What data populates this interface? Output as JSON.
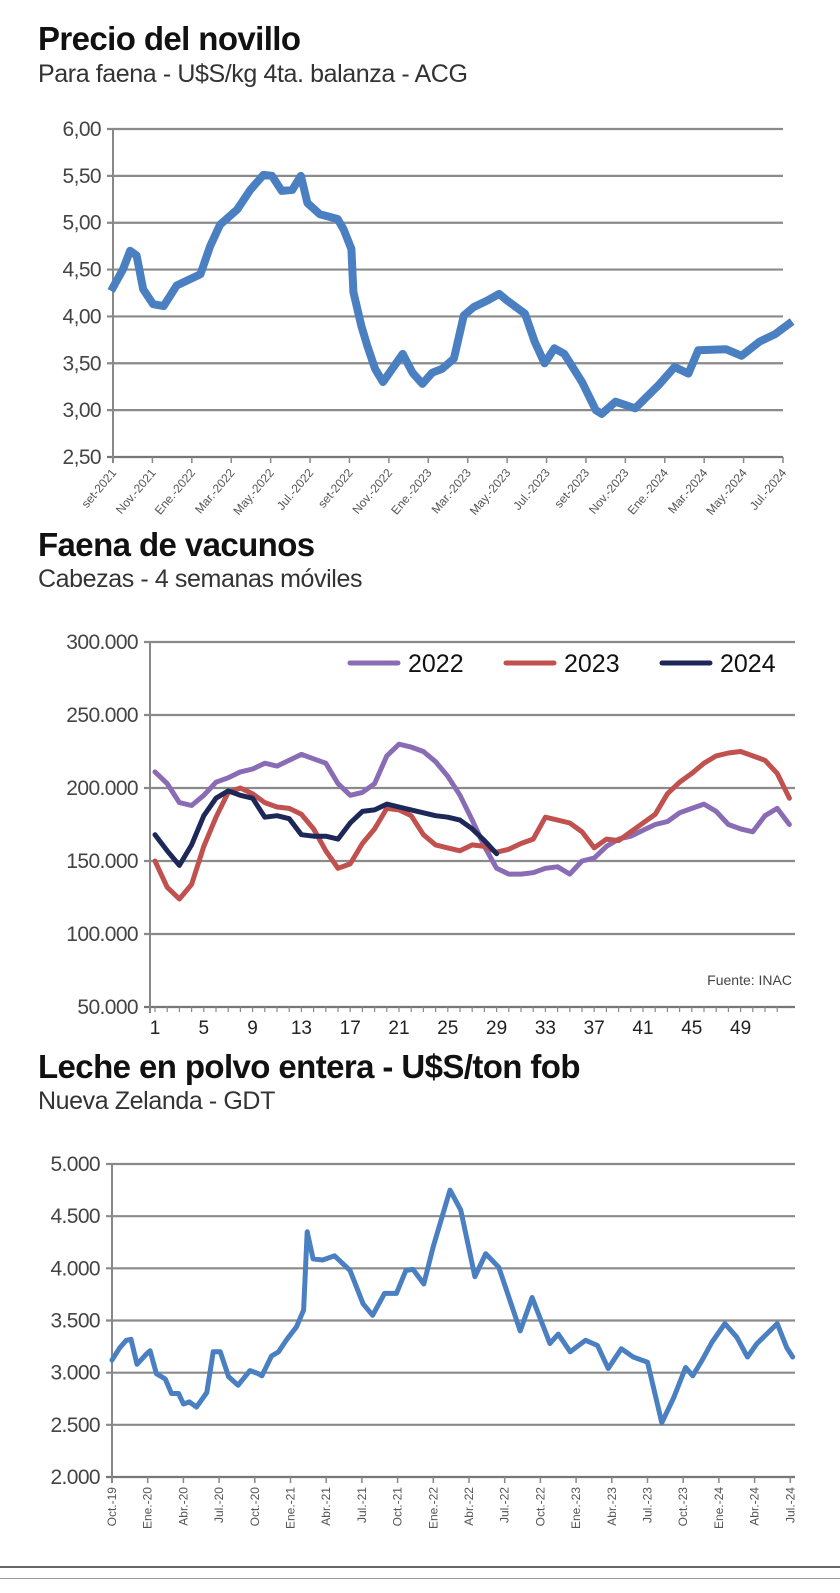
{
  "chart_data": [
    {
      "type": "line",
      "title": "Precio del novillo",
      "subtitle": "Para faena - U$S/kg 4ta. balanza - ACG",
      "ylim": [
        2.5,
        6.0
      ],
      "y_ticks": [
        "2,50",
        "3,00",
        "3,50",
        "4,00",
        "4,50",
        "5,00",
        "5,50",
        "6,00"
      ],
      "x_tick_labels": [
        "set-2021",
        "Nov.-2021",
        "Ene.-2022",
        "Mar.-2022",
        "May.-2022",
        "Jul.-2022",
        "set-2022",
        "Nov.-2022",
        "Ene.-2023",
        "Mar.-2023",
        "May.-2023",
        "Jul.-2023",
        "set-2023",
        "Nov.-2023",
        "Ene.-2024",
        "Mar.-2024",
        "May.-2024",
        "Jul.-2024"
      ],
      "grid": true,
      "color": "#4a7fc1",
      "series": [
        {
          "x": [
            "2021-09-01",
            "2021-09-16",
            "2021-09-27",
            "2021-10-07",
            "2021-10-17",
            "2021-11-02",
            "2021-11-18",
            "2021-12-08",
            "2022-01-14",
            "2022-01-29",
            "2022-02-14",
            "2022-03-10",
            "2022-03-30",
            "2022-04-20",
            "2022-05-03",
            "2022-05-18",
            "2022-06-04",
            "2022-06-17",
            "2022-06-27",
            "2022-07-16",
            "2022-08-13",
            "2022-08-22",
            "2022-09-04",
            "2022-09-07",
            "2022-09-19",
            "2022-09-28",
            "2022-10-10",
            "2022-10-22",
            "2022-11-10",
            "2022-11-22",
            "2022-12-07",
            "2022-12-22",
            "2023-01-07",
            "2023-01-22",
            "2023-02-10",
            "2023-02-25",
            "2023-03-10",
            "2023-04-01",
            "2023-04-19",
            "2023-05-01",
            "2023-05-28",
            "2023-06-13",
            "2023-06-28",
            "2023-07-13",
            "2023-07-28",
            "2023-08-25",
            "2023-09-16",
            "2023-09-25",
            "2023-10-16",
            "2023-11-16",
            "2023-12-22",
            "2024-01-16",
            "2024-02-07",
            "2024-02-22",
            "2024-04-04",
            "2024-04-28",
            "2024-05-25",
            "2024-06-19",
            "2024-07-10"
          ],
          "y": [
            4.31,
            4.5,
            4.7,
            4.65,
            4.29,
            4.13,
            4.11,
            4.33,
            4.45,
            4.75,
            4.98,
            5.14,
            5.35,
            5.51,
            5.5,
            5.34,
            5.35,
            5.5,
            5.21,
            5.09,
            5.04,
            4.93,
            4.72,
            4.26,
            3.9,
            3.69,
            3.44,
            3.3,
            3.48,
            3.6,
            3.4,
            3.28,
            3.4,
            3.44,
            3.55,
            4.01,
            4.1,
            4.17,
            4.24,
            4.17,
            4.03,
            3.73,
            3.5,
            3.66,
            3.6,
            3.3,
            3.0,
            2.96,
            3.09,
            3.02,
            3.27,
            3.46,
            3.39,
            3.64,
            3.65,
            3.58,
            3.73,
            3.81,
            3.92
          ]
        }
      ]
    },
    {
      "type": "line",
      "title": "Faena de vacunos",
      "subtitle": "Cabezas - 4 semanas móviles",
      "ylim": [
        50000,
        300000
      ],
      "y_ticks": [
        "50.000",
        "100.000",
        "150.000",
        "200.000",
        "250.000",
        "300.000"
      ],
      "x_tick_labels": [
        "1",
        "5",
        "9",
        "13",
        "17",
        "21",
        "25",
        "29",
        "33",
        "37",
        "41",
        "45",
        "49"
      ],
      "grid": true,
      "legend": "top-right",
      "source": "Fuente: INAC",
      "series": [
        {
          "name": "2022",
          "color": "#8a6cb5",
          "values": [
            211000,
            203000,
            190000,
            188000,
            195000,
            204000,
            207000,
            211000,
            213000,
            217000,
            215000,
            219000,
            223000,
            220000,
            217000,
            203000,
            195000,
            197000,
            203000,
            222000,
            230000,
            228000,
            225000,
            218000,
            208000,
            195000,
            178000,
            160000,
            145000,
            141000,
            141000,
            142000,
            145000,
            146000,
            141000,
            150000,
            152000,
            160000,
            165000,
            167000,
            171000,
            175000,
            177000,
            183000,
            186000,
            189000,
            184000,
            175000,
            172000,
            170000,
            181000,
            186000,
            175000
          ]
        },
        {
          "name": "2023",
          "color": "#c0514e",
          "values": [
            150000,
            132000,
            124000,
            134000,
            160000,
            180000,
            197000,
            200000,
            196000,
            190000,
            187000,
            186000,
            182000,
            172000,
            157000,
            145000,
            148000,
            162000,
            172000,
            186000,
            185000,
            181000,
            168000,
            161000,
            159000,
            157000,
            161000,
            160000,
            156000,
            158000,
            162000,
            165000,
            180000,
            178000,
            176000,
            170000,
            159000,
            165000,
            164000,
            170000,
            176000,
            182000,
            196000,
            204000,
            210000,
            217000,
            222000,
            224000,
            225000,
            222000,
            219000,
            210000,
            193000
          ]
        },
        {
          "name": "2024",
          "color": "#1e2858",
          "values": [
            168000,
            157000,
            147000,
            161000,
            181000,
            193000,
            198000,
            195000,
            193000,
            180000,
            181000,
            179000,
            168000,
            167000,
            167000,
            165000,
            176000,
            184000,
            185000,
            189000,
            187000,
            185000,
            183000,
            181000,
            180000,
            178000,
            172000,
            164000,
            155000
          ]
        }
      ]
    },
    {
      "type": "line",
      "title": "Leche en polvo entera - U$S/ton fob",
      "subtitle": "Nueva Zelanda - GDT",
      "ylim": [
        2000,
        5000
      ],
      "y_ticks": [
        "2.000",
        "2.500",
        "3.000",
        "3.500",
        "4.000",
        "4.500",
        "5.000"
      ],
      "x_tick_labels": [
        "Oct.-19",
        "Ene.-20",
        "Abr.-20",
        "Jul.-20",
        "Oct.-20",
        "Ene.-21",
        "Abr.-21",
        "Jul.-21",
        "Oct.-21",
        "Ene.-22",
        "Abr.-22",
        "Jul.-22",
        "Oct.-22",
        "Ene.-23",
        "Abr.-23",
        "Jul.-23",
        "Oct.-23",
        "Ene.-24",
        "Abr.-24",
        "Jul.-24"
      ],
      "grid": true,
      "color": "#4a7fc1",
      "series": [
        {
          "x": [
            "2019-10-01",
            "2019-10-21",
            "2019-11-07",
            "2019-11-19",
            "2019-12-04",
            "2019-12-28",
            "2020-01-07",
            "2020-01-23",
            "2020-02-15",
            "2020-03-01",
            "2020-03-19",
            "2020-04-01",
            "2020-04-16",
            "2020-05-04",
            "2020-05-30",
            "2020-06-16",
            "2020-07-04",
            "2020-07-25",
            "2020-08-19",
            "2020-09-19",
            "2020-10-10",
            "2020-10-19",
            "2020-11-13",
            "2020-12-01",
            "2020-12-22",
            "2021-01-16",
            "2021-02-04",
            "2021-02-13",
            "2021-02-28",
            "2021-03-22",
            "2021-04-22",
            "2021-06-01",
            "2021-07-04",
            "2021-07-28",
            "2021-08-28",
            "2021-09-28",
            "2021-10-22",
            "2021-11-10",
            "2021-12-07",
            "2022-01-01",
            "2022-02-13",
            "2022-03-10",
            "2022-04-16",
            "2022-05-13",
            "2022-06-16",
            "2022-08-10",
            "2022-09-10",
            "2022-10-25",
            "2022-11-16",
            "2022-12-16",
            "2023-01-25",
            "2023-02-25",
            "2023-03-22",
            "2023-04-25",
            "2023-05-25",
            "2023-07-01",
            "2023-08-07",
            "2023-09-07",
            "2023-10-07",
            "2023-10-25",
            "2023-11-19",
            "2023-12-13",
            "2024-01-16",
            "2024-02-16",
            "2024-03-13",
            "2024-04-07",
            "2024-05-28",
            "2024-06-22",
            "2024-07-07"
          ],
          "y": [
            3120,
            3240,
            3310,
            3320,
            3080,
            3180,
            3210,
            2990,
            2940,
            2800,
            2800,
            2700,
            2720,
            2670,
            2810,
            3200,
            3200,
            2960,
            2880,
            3020,
            2990,
            2970,
            3160,
            3200,
            3320,
            3440,
            3600,
            4350,
            4090,
            4080,
            4120,
            3980,
            3660,
            3550,
            3760,
            3760,
            3980,
            3990,
            3850,
            4210,
            4750,
            4560,
            3920,
            4140,
            4010,
            3400,
            3720,
            3280,
            3370,
            3200,
            3310,
            3260,
            3040,
            3230,
            3150,
            3100,
            2520,
            2760,
            3050,
            2970,
            3120,
            3290,
            3470,
            3340,
            3150,
            3280,
            3470,
            3240,
            3150
          ]
        }
      ]
    }
  ]
}
